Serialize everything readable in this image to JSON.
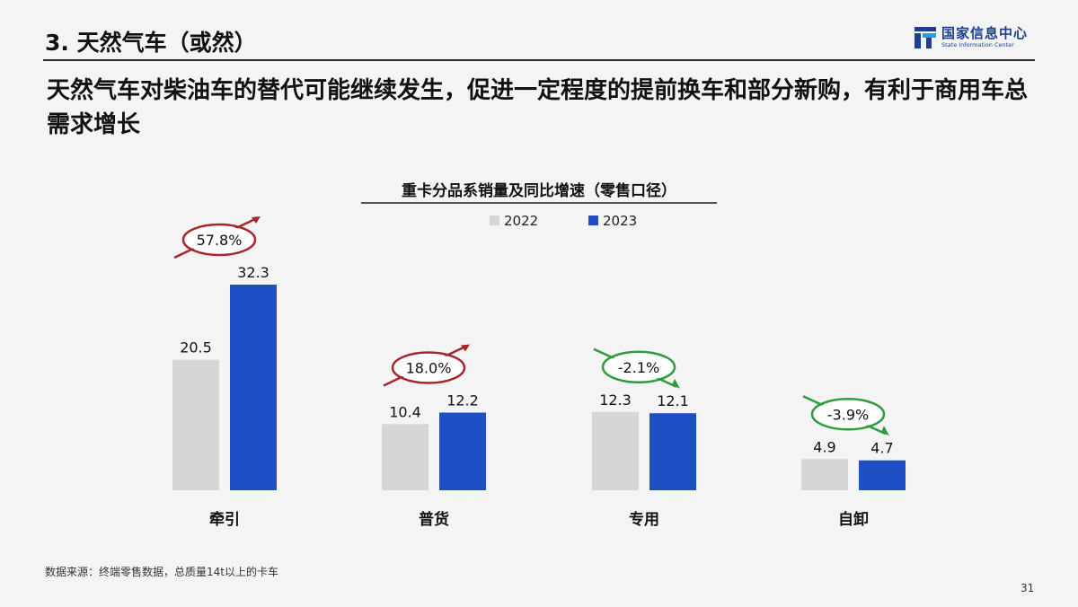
{
  "slide": {
    "section_title": "3. 天然气车（或然）",
    "headline": "天然气车对柴油车的替代可能继续发生，促进一定程度的提前换车和部分新购，有利于商用车总需求增长",
    "source": "数据来源：终端零售数据，总质量14t以上的卡车",
    "page_number": "31"
  },
  "logo": {
    "name_cn": "国家信息中心",
    "name_en": "State Information Center",
    "color": "#1d3f8f"
  },
  "chart_data": {
    "type": "bar",
    "title": "重卡分品系销量及同比增速（零售口径）",
    "categories": [
      "牵引",
      "普货",
      "专用",
      "自卸"
    ],
    "series": [
      {
        "name": "2022",
        "values": [
          20.5,
          10.4,
          12.3,
          4.9
        ],
        "color": "#d6d6d6"
      },
      {
        "name": "2023",
        "values": [
          32.3,
          12.2,
          12.1,
          4.7
        ],
        "color": "#1f4fc4"
      }
    ],
    "growth": [
      {
        "label": "57.8%",
        "direction": "up",
        "color": "#a5262b"
      },
      {
        "label": "18.0%",
        "direction": "up",
        "color": "#a5262b"
      },
      {
        "label": "-2.1%",
        "direction": "down",
        "color": "#2e9b3c"
      },
      {
        "label": "-3.9%",
        "direction": "down",
        "color": "#2e9b3c"
      }
    ],
    "ylim": [
      0,
      32.3
    ],
    "legend_position": "top-center",
    "grid": false
  }
}
